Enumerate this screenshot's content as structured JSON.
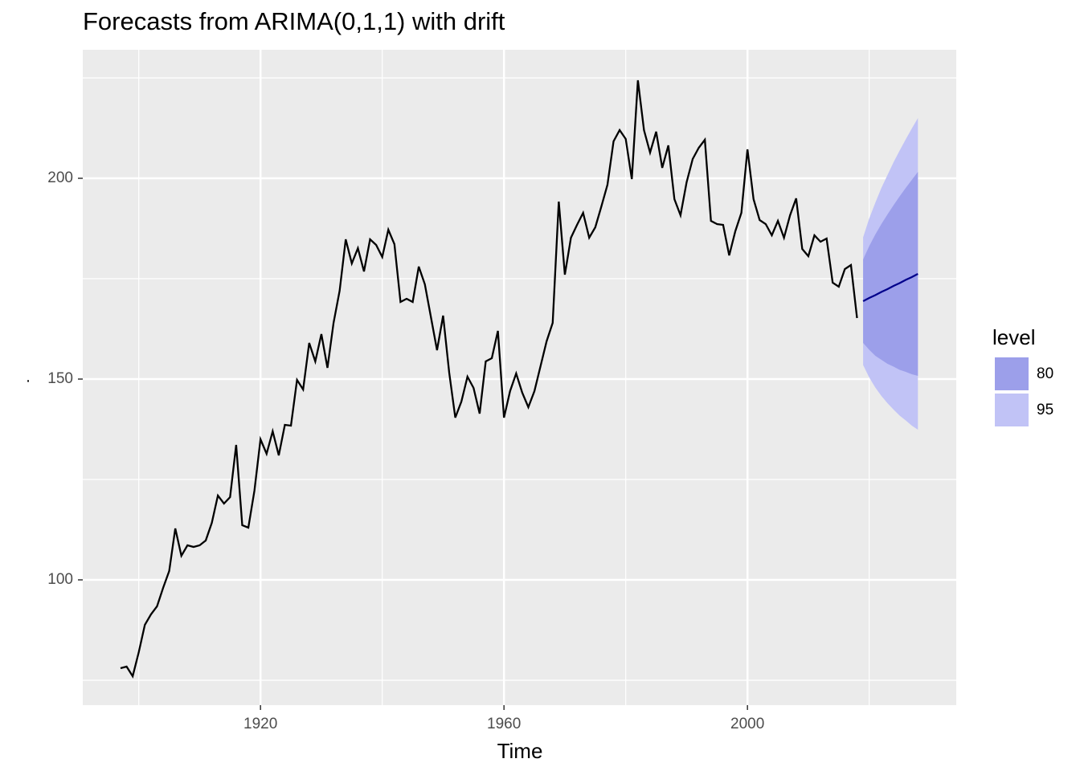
{
  "chart_data": {
    "type": "forecast",
    "title": "Forecasts from ARIMA(0,1,1) with drift",
    "x_label": "Time",
    "y_label": ".",
    "xlim": [
      1890.8,
      2034.3
    ],
    "ylim": [
      68.8,
      232
    ],
    "xticks": [
      1920,
      1960,
      2000
    ],
    "yticks": [
      100,
      150,
      200
    ],
    "xminor": [
      1900,
      1940,
      1980,
      2020
    ],
    "yminor": [
      75,
      125,
      175,
      225
    ],
    "grid": true,
    "legend_title": "level",
    "legend_position": "right",
    "x": [
      1897,
      1898,
      1899,
      1900,
      1901,
      1902,
      1903,
      1904,
      1905,
      1906,
      1907,
      1908,
      1909,
      1910,
      1911,
      1912,
      1913,
      1914,
      1915,
      1916,
      1917,
      1918,
      1919,
      1920,
      1921,
      1922,
      1923,
      1924,
      1925,
      1926,
      1927,
      1928,
      1929,
      1930,
      1931,
      1932,
      1933,
      1934,
      1935,
      1936,
      1937,
      1938,
      1939,
      1940,
      1941,
      1942,
      1943,
      1944,
      1945,
      1946,
      1947,
      1948,
      1949,
      1950,
      1951,
      1952,
      1953,
      1954,
      1955,
      1956,
      1957,
      1958,
      1959,
      1960,
      1961,
      1962,
      1963,
      1964,
      1965,
      1966,
      1967,
      1968,
      1969,
      1970,
      1971,
      1972,
      1973,
      1974,
      1975,
      1976,
      1977,
      1978,
      1979,
      1980,
      1981,
      1982,
      1983,
      1984,
      1985,
      1986,
      1987,
      1988,
      1989,
      1990,
      1991,
      1992,
      1993,
      1994,
      1995,
      1996,
      1997,
      1998,
      1999,
      2000,
      2001,
      2002,
      2003,
      2004,
      2005,
      2006,
      2007,
      2008,
      2009,
      2010,
      2011,
      2012,
      2013,
      2014,
      2015,
      2016,
      2017,
      2018
    ],
    "values": [
      78,
      78.4,
      76,
      82,
      88.8,
      91.4,
      93.4,
      98,
      102.2,
      112.8,
      106,
      108.6,
      108.2,
      108.6,
      109.8,
      114.2,
      121,
      119,
      120.6,
      133.6,
      113.6,
      113,
      122.2,
      135,
      131.4,
      137,
      131,
      138.6,
      138.4,
      149.8,
      147.4,
      159,
      154.4,
      161.2,
      152.8,
      164,
      172,
      184.8,
      178.8,
      182.6,
      176.8,
      184.8,
      183.4,
      180.4,
      187.2,
      183.6,
      169.2,
      170,
      169.2,
      178,
      173.6,
      165.4,
      157.2,
      165.8,
      151.6,
      140.4,
      144.4,
      150.6,
      147.8,
      141.4,
      154.4,
      155.2,
      162,
      140.4,
      147,
      151.4,
      146.6,
      143,
      147,
      153.2,
      159.4,
      164,
      194.2,
      176,
      185.2,
      188.4,
      191.4,
      185.2,
      187.8,
      193,
      198.4,
      209.2,
      212,
      209.8,
      199.8,
      224.4,
      212,
      206.4,
      211.6,
      202.6,
      208.2,
      194.8,
      190.8,
      199,
      204.8,
      207.6,
      209.6,
      189.4,
      188.6,
      188.4,
      180.8,
      186.8,
      191.4,
      207.2,
      194.8,
      189.6,
      188.6,
      185.8,
      189.4,
      185.2,
      190.8,
      195,
      182.4,
      180.6,
      185.8,
      184.2,
      185,
      174,
      173,
      177.4,
      178.4,
      165.2
    ],
    "color": "#000000",
    "forecast": {
      "x": [
        2019,
        2020,
        2021,
        2022,
        2023,
        2024,
        2025,
        2026,
        2027,
        2028
      ],
      "mean": [
        169.4,
        170.2,
        170.9,
        171.7,
        172.4,
        173.2,
        173.9,
        174.7,
        175.4,
        176.2
      ],
      "color": "#00008b",
      "intervals": [
        {
          "name": "80",
          "color": "#9c9fea",
          "lower": [
            159.0,
            157.3,
            155.8,
            154.8,
            153.8,
            153.1,
            152.3,
            151.8,
            151.2,
            150.8
          ],
          "upper": [
            179.8,
            183.1,
            186.0,
            188.6,
            191.0,
            193.3,
            195.5,
            197.6,
            199.6,
            201.6
          ]
        },
        {
          "name": "95",
          "color": "#c1c3f6",
          "lower": [
            153.5,
            150.4,
            147.9,
            145.8,
            144.0,
            142.4,
            140.9,
            139.7,
            138.4,
            137.4
          ],
          "upper": [
            185.3,
            190.0,
            193.9,
            197.6,
            200.8,
            204.0,
            206.9,
            209.7,
            212.4,
            215.0
          ]
        }
      ]
    }
  }
}
